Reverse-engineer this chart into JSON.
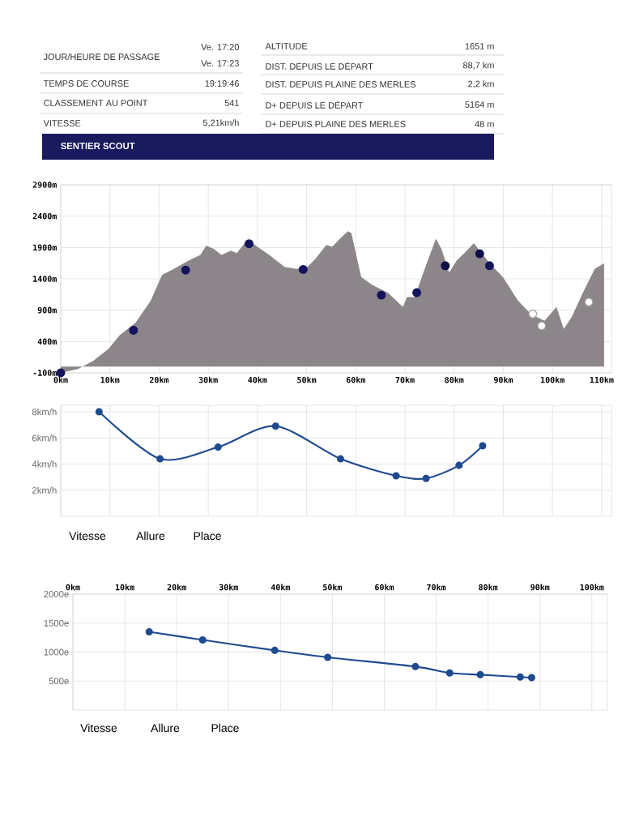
{
  "chart_data": [
    {
      "type": "other",
      "title": "SENTIER SCOUT",
      "color": "#1a1a5e",
      "annotations": [
        "JOUR/HEURE DE PASSAGE",
        "Ve. 17:20",
        "Ve. 17:23",
        "TEMPS DE COURSE",
        "19:19:46",
        "CLASSEMENT AU POINT",
        "541",
        "VITESSE",
        "5,21km/h",
        "ALTITUDE",
        "1651 m",
        "DIST. DEPUIS LE DÉPART",
        "88,7 km",
        "DIST. DEPUIS PLAINE DES MERLES",
        "2,2 km",
        "D+ DEPUIS LE DÉPART",
        "5164 m",
        "D+ DEPUIS PLAINE DES MERLES",
        "48 m"
      ]
    },
    {
      "type": "area",
      "xlim": [
        0,
        112
      ],
      "ylim": [
        -100,
        2900
      ],
      "grid": true,
      "xticks": [
        {
          "value": 0,
          "label": "0km"
        },
        {
          "value": 10,
          "label": "10km"
        },
        {
          "value": 20,
          "label": "20km"
        },
        {
          "value": 30,
          "label": "30km"
        },
        {
          "value": 40,
          "label": "40km"
        },
        {
          "value": 50,
          "label": "50km"
        },
        {
          "value": 60,
          "label": "60km"
        },
        {
          "value": 70,
          "label": "70km"
        },
        {
          "value": 80,
          "label": "80km"
        },
        {
          "value": 90,
          "label": "90km"
        },
        {
          "value": 100,
          "label": "100km"
        },
        {
          "value": 110,
          "label": "110km"
        }
      ],
      "yticks": [
        {
          "value": -100,
          "label": "-100m"
        },
        {
          "value": 400,
          "label": "400m"
        },
        {
          "value": 900,
          "label": "900m"
        },
        {
          "value": 1400,
          "label": "1400m"
        },
        {
          "value": 1900,
          "label": "1900m"
        },
        {
          "value": 2400,
          "label": "2400m"
        },
        {
          "value": 2900,
          "label": "2900m"
        }
      ],
      "series": [
        {
          "type": "area",
          "color": "#8c8589",
          "x": [
            0,
            3.5,
            6.6,
            9.7,
            12,
            15.2,
            18.3,
            20.6,
            23,
            26,
            28.4,
            29.6,
            31.1,
            32.7,
            34.6,
            35.8,
            37.4,
            38.5,
            40,
            42.4,
            45.5,
            47.9,
            50.2,
            51.8,
            54,
            55.2,
            56.8,
            58.4,
            59.1,
            61.1,
            63.4,
            66.5,
            69.6,
            70.4,
            72,
            74.3,
            76.3,
            77.4,
            79,
            80.5,
            82.1,
            84,
            85.6,
            87.2,
            89.9,
            93,
            95.7,
            98.4,
            100.8,
            102.3,
            103.9,
            106.2,
            108.6,
            110.5
          ],
          "values": [
            -100,
            -40,
            90,
            280,
            500,
            700,
            1050,
            1460,
            1560,
            1690,
            1780,
            1930,
            1880,
            1780,
            1850,
            1810,
            1970,
            2000,
            1910,
            1780,
            1590,
            1560,
            1590,
            1720,
            1940,
            1910,
            2040,
            2160,
            2130,
            1430,
            1300,
            1180,
            950,
            1110,
            1110,
            1620,
            2040,
            1880,
            1500,
            1690,
            1810,
            1970,
            1810,
            1650,
            1430,
            1050,
            830,
            730,
            950,
            600,
            790,
            1180,
            1560,
            1650
          ]
        },
        {
          "type": "scatter",
          "color": "#14145e",
          "x": [
            0,
            14.8,
            25.4,
            38.3,
            49.3,
            65.2,
            72.4,
            87.2
          ],
          "values": [
            -100,
            580,
            1540,
            1960,
            1550,
            1140,
            1180,
            1610
          ]
        },
        {
          "type": "scatter",
          "color": "#0f0f4a",
          "x": [
            78.2,
            85.2
          ],
          "values": [
            1610,
            1800
          ]
        },
        {
          "type": "scatter",
          "color": "#ffffff",
          "x": [
            96,
            97.8,
            107.4
          ],
          "values": [
            840,
            650,
            1030
          ]
        }
      ]
    },
    {
      "type": "line",
      "xlim": [
        0,
        112
      ],
      "ylim": [
        0,
        8.5
      ],
      "grid": true,
      "tick_labels": "y",
      "marker": "circle",
      "line_style": "solid",
      "xticks": [
        0,
        10,
        20,
        30,
        40,
        50,
        60,
        70,
        80,
        90,
        100,
        110
      ],
      "yticks": [
        {
          "value": 2,
          "label": "2km/h"
        },
        {
          "value": 4,
          "label": "4km/h"
        },
        {
          "value": 6,
          "label": "6km/h"
        },
        {
          "value": 8,
          "label": "8km/h"
        }
      ],
      "annotations": [
        "Vitesse",
        "Allure",
        "Place"
      ],
      "series": [
        {
          "color": "#1f4a8f",
          "x": [
            7.8,
            20.2,
            32,
            43.7,
            56.9,
            68.2,
            74.3,
            81,
            85.8
          ],
          "values": [
            8.0,
            4.4,
            5.3,
            6.9,
            4.4,
            3.1,
            2.9,
            3.9,
            5.4
          ]
        }
      ]
    },
    {
      "type": "line",
      "xlim": [
        0,
        103
      ],
      "ylim": [
        0,
        2000
      ],
      "grid": true,
      "marker": "circle",
      "line_style": "solid",
      "xticks": [
        {
          "value": 0,
          "label": "0km"
        },
        {
          "value": 10,
          "label": "10km"
        },
        {
          "value": 20,
          "label": "20km"
        },
        {
          "value": 30,
          "label": "30km"
        },
        {
          "value": 40,
          "label": "40km"
        },
        {
          "value": 50,
          "label": "50km"
        },
        {
          "value": 60,
          "label": "60km"
        },
        {
          "value": 70,
          "label": "70km"
        },
        {
          "value": 80,
          "label": "80km"
        },
        {
          "value": 90,
          "label": "90km"
        },
        {
          "value": 100,
          "label": "100km"
        }
      ],
      "yticks": [
        {
          "value": 500,
          "label": "500e"
        },
        {
          "value": 1000,
          "label": "1000e"
        },
        {
          "value": 1500,
          "label": "1500e"
        },
        {
          "value": 2000,
          "label": "2000e"
        }
      ],
      "annotations": [
        "Vitesse",
        "Allure",
        "Place"
      ],
      "series": [
        {
          "color": "#1f4a8f",
          "x": [
            14.7,
            25,
            38.9,
            49.1,
            66,
            72.6,
            78.5,
            86.2,
            88.4
          ],
          "values": [
            1350,
            1210,
            1030,
            910,
            750,
            640,
            610,
            570,
            560
          ]
        }
      ]
    }
  ]
}
